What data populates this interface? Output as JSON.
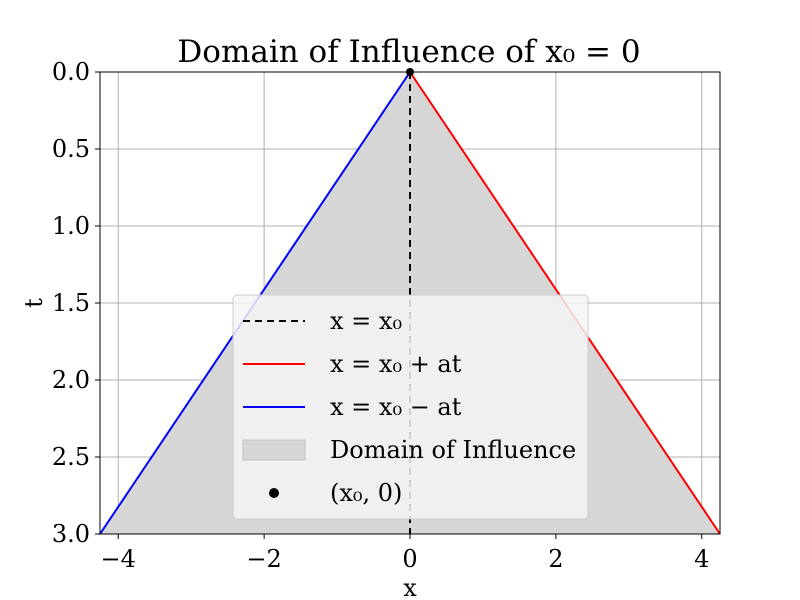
{
  "chart_data": {
    "type": "line",
    "title": "Domain of Influence of x₀ = 0",
    "xlabel": "x",
    "ylabel": "t",
    "xlim": [
      -4.25,
      4.25
    ],
    "ylim": [
      3.0,
      0.0
    ],
    "y_inverted": true,
    "x_ticks": [
      -4,
      -2,
      0,
      2,
      4
    ],
    "x_tick_labels": [
      "−4",
      "−2",
      "0",
      "2",
      "4"
    ],
    "y_ticks": [
      0.0,
      0.5,
      1.0,
      1.5,
      2.0,
      2.5,
      3.0
    ],
    "y_tick_labels": [
      "0.0",
      "0.5",
      "1.0",
      "1.5",
      "2.0",
      "2.5",
      "3.0"
    ],
    "grid": true,
    "legend_position": "lower-center",
    "series": [
      {
        "name": "x = x₀",
        "style": "dashed",
        "color": "#000000",
        "x": [
          0,
          0
        ],
        "y": [
          0,
          3
        ]
      },
      {
        "name": "x = x₀ + at",
        "style": "solid",
        "color": "#ff0000",
        "x": [
          0,
          4.25
        ],
        "y": [
          0,
          3
        ]
      },
      {
        "name": "x = x₀ − at",
        "style": "solid",
        "color": "#0000ff",
        "x": [
          0,
          -4.25
        ],
        "y": [
          0,
          3
        ]
      }
    ],
    "fill": {
      "name": "Domain of Influence",
      "color": "#d6d6d6",
      "x": [
        0,
        4.25,
        -4.25
      ],
      "y": [
        0,
        3,
        3
      ]
    },
    "point": {
      "name": "(x₀, 0)",
      "color": "#000000",
      "x": 0,
      "y": 0
    }
  }
}
